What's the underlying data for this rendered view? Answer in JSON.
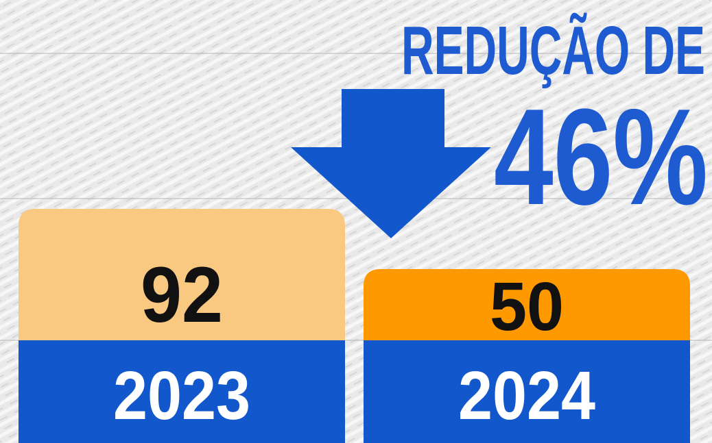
{
  "headline": {
    "line1": "REDUÇÃO DE",
    "line2": "46%"
  },
  "boxes": [
    {
      "value": "92",
      "year": "2023"
    },
    {
      "value": "50",
      "year": "2024"
    }
  ]
}
